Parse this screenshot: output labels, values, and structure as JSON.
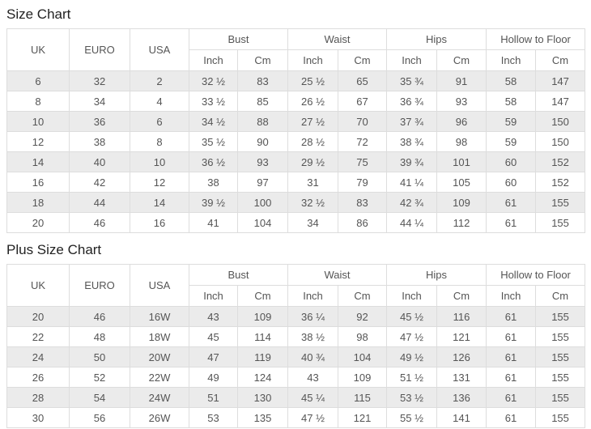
{
  "colors": {
    "stripe_row_bg": "#ebebeb",
    "border": "#dddddd",
    "cell_text": "#555555",
    "title_text": "#222222",
    "background": "#ffffff"
  },
  "tables": [
    {
      "title": "Size Chart",
      "single_columns": [
        "UK",
        "EURO",
        "USA"
      ],
      "group_columns": [
        {
          "label": "Bust",
          "sub": [
            "Inch",
            "Cm"
          ]
        },
        {
          "label": "Waist",
          "sub": [
            "Inch",
            "Cm"
          ]
        },
        {
          "label": "Hips",
          "sub": [
            "Inch",
            "Cm"
          ]
        },
        {
          "label": "Hollow to Floor",
          "sub": [
            "Inch",
            "Cm"
          ]
        }
      ],
      "rows": [
        [
          "6",
          "32",
          "2",
          "32 ½",
          "83",
          "25 ½",
          "65",
          "35 ¾",
          "91",
          "58",
          "147"
        ],
        [
          "8",
          "34",
          "4",
          "33 ½",
          "85",
          "26 ½",
          "67",
          "36 ¾",
          "93",
          "58",
          "147"
        ],
        [
          "10",
          "36",
          "6",
          "34 ½",
          "88",
          "27 ½",
          "70",
          "37 ¾",
          "96",
          "59",
          "150"
        ],
        [
          "12",
          "38",
          "8",
          "35 ½",
          "90",
          "28 ½",
          "72",
          "38 ¾",
          "98",
          "59",
          "150"
        ],
        [
          "14",
          "40",
          "10",
          "36 ½",
          "93",
          "29 ½",
          "75",
          "39 ¾",
          "101",
          "60",
          "152"
        ],
        [
          "16",
          "42",
          "12",
          "38",
          "97",
          "31",
          "79",
          "41 ¼",
          "105",
          "60",
          "152"
        ],
        [
          "18",
          "44",
          "14",
          "39 ½",
          "100",
          "32 ½",
          "83",
          "42 ¾",
          "109",
          "61",
          "155"
        ],
        [
          "20",
          "46",
          "16",
          "41",
          "104",
          "34",
          "86",
          "44 ¼",
          "112",
          "61",
          "155"
        ]
      ]
    },
    {
      "title": "Plus Size Chart",
      "single_columns": [
        "UK",
        "EURO",
        "USA"
      ],
      "group_columns": [
        {
          "label": "Bust",
          "sub": [
            "Inch",
            "Cm"
          ]
        },
        {
          "label": "Waist",
          "sub": [
            "Inch",
            "Cm"
          ]
        },
        {
          "label": "Hips",
          "sub": [
            "Inch",
            "Cm"
          ]
        },
        {
          "label": "Hollow to Floor",
          "sub": [
            "Inch",
            "Cm"
          ]
        }
      ],
      "rows": [
        [
          "20",
          "46",
          "16W",
          "43",
          "109",
          "36 ¼",
          "92",
          "45 ½",
          "116",
          "61",
          "155"
        ],
        [
          "22",
          "48",
          "18W",
          "45",
          "114",
          "38 ½",
          "98",
          "47 ½",
          "121",
          "61",
          "155"
        ],
        [
          "24",
          "50",
          "20W",
          "47",
          "119",
          "40 ¾",
          "104",
          "49 ½",
          "126",
          "61",
          "155"
        ],
        [
          "26",
          "52",
          "22W",
          "49",
          "124",
          "43",
          "109",
          "51 ½",
          "131",
          "61",
          "155"
        ],
        [
          "28",
          "54",
          "24W",
          "51",
          "130",
          "45 ¼",
          "115",
          "53 ½",
          "136",
          "61",
          "155"
        ],
        [
          "30",
          "56",
          "26W",
          "53",
          "135",
          "47 ½",
          "121",
          "55 ½",
          "141",
          "61",
          "155"
        ]
      ]
    }
  ]
}
